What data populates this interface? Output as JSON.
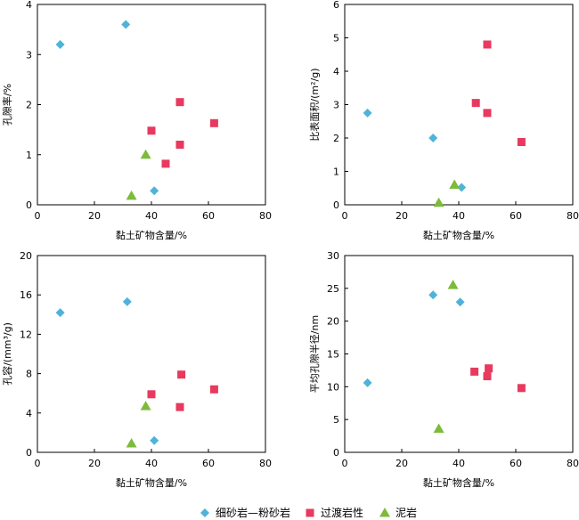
{
  "legend": [
    {
      "name": "细砂岩—粉砂岩",
      "marker": "diamond",
      "color": "#4FB3D9"
    },
    {
      "name": "过渡岩性",
      "marker": "square",
      "color": "#E8395F"
    },
    {
      "name": "泥岩",
      "marker": "triangle",
      "color": "#7DBB3B"
    }
  ],
  "chart_data": [
    {
      "type": "scatter",
      "xlabel": "黏土矿物含量/%",
      "ylabel": "孔隙率/%",
      "xlim": [
        0,
        80
      ],
      "ylim": [
        0,
        4
      ],
      "xticks": [
        0,
        20,
        40,
        60,
        80
      ],
      "yticks": [
        0,
        1,
        2,
        3,
        4
      ],
      "series": [
        {
          "name": "细砂岩—粉砂岩",
          "points": [
            [
              8,
              3.2
            ],
            [
              31,
              3.6
            ],
            [
              41,
              0.28
            ]
          ]
        },
        {
          "name": "过渡岩性",
          "points": [
            [
              40,
              1.48
            ],
            [
              45,
              0.82
            ],
            [
              50,
              1.2
            ],
            [
              50,
              2.05
            ],
            [
              62,
              1.63
            ]
          ]
        },
        {
          "name": "泥岩",
          "points": [
            [
              38,
              1.0
            ],
            [
              33,
              0.18
            ]
          ]
        }
      ]
    },
    {
      "type": "scatter",
      "xlabel": "黏土矿物含量/%",
      "ylabel": "比表面积/(m²/g)",
      "xlim": [
        0,
        80
      ],
      "ylim": [
        0,
        6
      ],
      "xticks": [
        0,
        20,
        40,
        60,
        80
      ],
      "yticks": [
        0,
        1,
        2,
        3,
        4,
        5,
        6
      ],
      "series": [
        {
          "name": "细砂岩—粉砂岩",
          "points": [
            [
              8,
              2.75
            ],
            [
              31,
              2.0
            ],
            [
              41,
              0.52
            ]
          ]
        },
        {
          "name": "过渡岩性",
          "points": [
            [
              46,
              3.05
            ],
            [
              50,
              4.8
            ],
            [
              50,
              2.75
            ],
            [
              62,
              1.88
            ]
          ]
        },
        {
          "name": "泥岩",
          "points": [
            [
              38.5,
              0.6
            ],
            [
              33,
              0.06
            ]
          ]
        }
      ]
    },
    {
      "type": "scatter",
      "xlabel": "黏土矿物含量/%",
      "ylabel": "孔容/(mm³/g)",
      "xlim": [
        0,
        80
      ],
      "ylim": [
        0,
        20
      ],
      "xticks": [
        0,
        20,
        40,
        60,
        80
      ],
      "yticks": [
        0,
        4,
        8,
        12,
        16,
        20
      ],
      "series": [
        {
          "name": "细砂岩—粉砂岩",
          "points": [
            [
              8,
              14.2
            ],
            [
              31.5,
              15.3
            ],
            [
              41,
              1.2
            ]
          ]
        },
        {
          "name": "过渡岩性",
          "points": [
            [
              40,
              5.9
            ],
            [
              50,
              4.6
            ],
            [
              50.5,
              7.9
            ],
            [
              62,
              6.4
            ]
          ]
        },
        {
          "name": "泥岩",
          "points": [
            [
              38,
              4.7
            ],
            [
              33,
              0.9
            ]
          ]
        }
      ]
    },
    {
      "type": "scatter",
      "xlabel": "黏土矿物含量/%",
      "ylabel": "平均孔隙半径/nm",
      "xlim": [
        0,
        80
      ],
      "ylim": [
        0,
        30
      ],
      "xticks": [
        0,
        20,
        40,
        60,
        80
      ],
      "yticks": [
        0,
        5,
        10,
        15,
        20,
        25,
        30
      ],
      "series": [
        {
          "name": "细砂岩—粉砂岩",
          "points": [
            [
              8,
              10.6
            ],
            [
              31,
              24.0
            ],
            [
              40.5,
              22.9
            ]
          ]
        },
        {
          "name": "过渡岩性",
          "points": [
            [
              45.5,
              12.3
            ],
            [
              50,
              11.6
            ],
            [
              50.5,
              12.8
            ],
            [
              62,
              9.8
            ]
          ]
        },
        {
          "name": "泥岩",
          "points": [
            [
              38,
              25.5
            ],
            [
              33,
              3.6
            ]
          ]
        }
      ]
    }
  ]
}
